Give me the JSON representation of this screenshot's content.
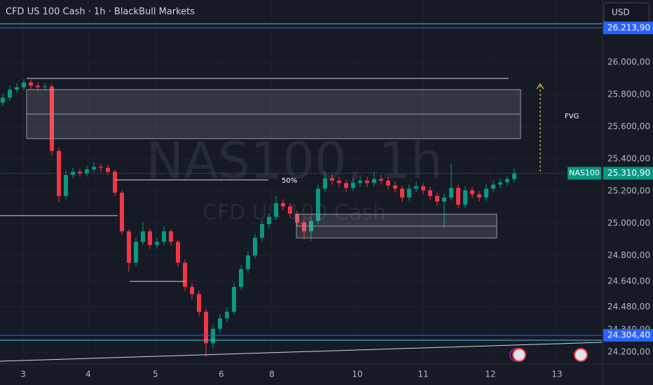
{
  "chart_data": {
    "type": "candlestick",
    "title": "CFD US 100 Cash · 1h · BlackBull Markets",
    "currency": "USD",
    "watermark": "NAS100, 1h",
    "watermark_subtitle": "CFD US 100 Cash",
    "annotations": [
      "FVG",
      "50%"
    ],
    "up_color": "#089981",
    "down_color": "#f23645",
    "categories": [
      null,
      null,
      null,
      null,
      null,
      null,
      null,
      null,
      null,
      null,
      null,
      null,
      null,
      null,
      null,
      null,
      null,
      null,
      null,
      null,
      null,
      null,
      null,
      null,
      null,
      null,
      null,
      null,
      null,
      null,
      null,
      null,
      null,
      null,
      null,
      null,
      null,
      null,
      null,
      null,
      null,
      null,
      null,
      null,
      null,
      null,
      null,
      null,
      null,
      null,
      null,
      null,
      null,
      null,
      null,
      null,
      null,
      null,
      null,
      null,
      null,
      null,
      null,
      null,
      null,
      null,
      null,
      null,
      null,
      null,
      null,
      null,
      null,
      null
    ],
    "open": [
      25750,
      25780,
      25830,
      25845,
      25875,
      25855,
      25845,
      25850,
      25450,
      25170,
      25300,
      25320,
      25310,
      25335,
      25350,
      25345,
      25320,
      25190,
      24950,
      24755,
      24885,
      24950,
      24865,
      24885,
      24950,
      24885,
      24755,
      24605,
      24560,
      24450,
      24255,
      24345,
      24410,
      24450,
      24605,
      24715,
      24800,
      24910,
      24995,
      25040,
      25125,
      25105,
      25060,
      25005,
      24950,
      25015,
      25215,
      25280,
      25265,
      25250,
      25220,
      25250,
      25265,
      25250,
      25275,
      25265,
      25235,
      25215,
      25160,
      25215,
      25230,
      25205,
      25170,
      25135,
      25160,
      25220,
      25115,
      25205,
      25180,
      25160,
      25215,
      25240,
      25255,
      25275
    ],
    "high": [
      25805,
      25855,
      25870,
      25895,
      25890,
      25875,
      25870,
      25865,
      25470,
      25330,
      25345,
      25340,
      25360,
      25380,
      25370,
      25365,
      25335,
      25205,
      24965,
      24910,
      25010,
      24965,
      24910,
      24980,
      24965,
      24900,
      24775,
      24630,
      24580,
      24470,
      24370,
      24435,
      24475,
      24630,
      24740,
      24825,
      24935,
      25020,
      25065,
      25170,
      25150,
      25125,
      25080,
      25025,
      25040,
      25240,
      25320,
      25305,
      25290,
      25270,
      25280,
      25300,
      25290,
      25320,
      25300,
      25285,
      25260,
      25235,
      25240,
      25260,
      25250,
      25225,
      25190,
      25185,
      25370,
      25240,
      25230,
      25225,
      25200,
      25240,
      25265,
      25280,
      25295,
      25340
    ],
    "low": [
      25725,
      25760,
      25810,
      25825,
      25835,
      25820,
      25825,
      25420,
      25130,
      25150,
      25280,
      25290,
      25290,
      25315,
      25320,
      25300,
      25170,
      24930,
      24700,
      24735,
      24865,
      24840,
      24845,
      24865,
      24860,
      24730,
      24580,
      24530,
      24420,
      24170,
      24220,
      24320,
      24385,
      24430,
      24585,
      24690,
      24780,
      24885,
      24970,
      25020,
      25080,
      25035,
      24980,
      24900,
      24890,
      24995,
      25195,
      25240,
      25225,
      25195,
      25200,
      25225,
      25225,
      25230,
      25240,
      25210,
      25190,
      25135,
      25140,
      25195,
      25180,
      25145,
      25110,
      24970,
      25140,
      25095,
      25095,
      25155,
      25135,
      25140,
      25195,
      25220,
      25235,
      25255
    ],
    "close": [
      25780,
      25830,
      25845,
      25875,
      25855,
      25845,
      25850,
      25450,
      25170,
      25300,
      25320,
      25310,
      25335,
      25350,
      25345,
      25320,
      25190,
      24950,
      24755,
      24885,
      24950,
      24865,
      24885,
      24950,
      24885,
      24755,
      24605,
      24560,
      24450,
      24255,
      24345,
      24410,
      24450,
      24605,
      24715,
      24800,
      24910,
      24995,
      25040,
      25125,
      25105,
      25060,
      25005,
      24950,
      25015,
      25215,
      25280,
      25265,
      25250,
      25220,
      25250,
      25265,
      25250,
      25275,
      25265,
      25235,
      25215,
      25160,
      25215,
      25230,
      25205,
      25170,
      25135,
      25160,
      25220,
      25115,
      25205,
      25180,
      25160,
      25215,
      25240,
      25255,
      25275,
      25310
    ],
    "xlim": [
      -0.4,
      85.6
    ],
    "xticks": [
      {
        "value": 2.9,
        "label": "3"
      },
      {
        "value": 12.2,
        "label": "4"
      },
      {
        "value": 21.8,
        "label": "5"
      },
      {
        "value": 31.2,
        "label": "6"
      },
      {
        "value": 38.4,
        "label": "8"
      },
      {
        "value": 50.6,
        "label": "10"
      },
      {
        "value": 60,
        "label": "11"
      },
      {
        "value": 69.6,
        "label": "12"
      },
      {
        "value": 79.1,
        "label": "13"
      }
    ],
    "ylim": [
      24126,
      26387
    ],
    "yticks": [
      {
        "value": 26000,
        "label": "26.000,00"
      },
      {
        "value": 25800,
        "label": "25.800,00"
      },
      {
        "value": 25600,
        "label": "25.600,00"
      },
      {
        "value": 25400,
        "label": "25.400,00"
      },
      {
        "value": 25200,
        "label": "25.200,00"
      },
      {
        "value": 25000,
        "label": "25.000,00"
      },
      {
        "value": 24800,
        "label": "24.800,00"
      },
      {
        "value": 24640,
        "label": "24.640,00"
      },
      {
        "value": 24480,
        "label": "24.480,00"
      },
      {
        "value": 24340,
        "label": "24.340,00"
      },
      {
        "value": 24200,
        "label": "24.200,00"
      }
    ],
    "price_lines": [
      {
        "value": 26213.9,
        "label": "26.213,90",
        "color": "#2962ff"
      },
      {
        "value": 24304.4,
        "label": "24.304,40",
        "color": "#2962ff"
      }
    ],
    "last_price": {
      "name": "NAS100",
      "value": 25310.9,
      "label": "25.310,90",
      "color": "#089981"
    },
    "grid": true
  }
}
